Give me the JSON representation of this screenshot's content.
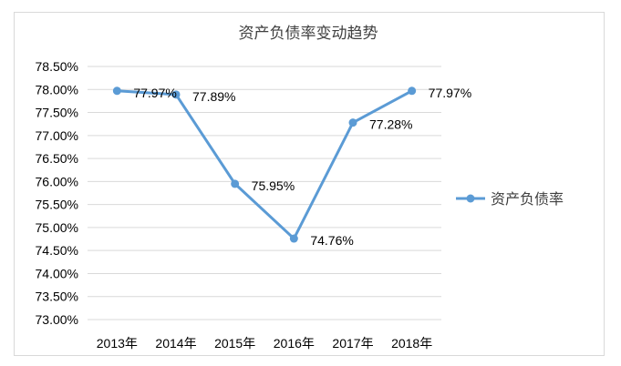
{
  "chart_data": {
    "type": "line",
    "title": "资产负债率变动趋势",
    "categories": [
      "2013年",
      "2014年",
      "2015年",
      "2016年",
      "2017年",
      "2018年"
    ],
    "series": [
      {
        "name": "资产负债率",
        "values": [
          77.97,
          77.89,
          75.95,
          74.76,
          77.28,
          77.97
        ],
        "labels": [
          "77.97%",
          "77.89%",
          "75.95%",
          "74.76%",
          "77.28%",
          "77.97%"
        ]
      }
    ],
    "yticks": [
      "73.00%",
      "73.50%",
      "74.00%",
      "74.50%",
      "75.00%",
      "75.50%",
      "76.00%",
      "76.50%",
      "77.00%",
      "77.50%",
      "78.00%",
      "78.50%"
    ],
    "ylim": [
      73.0,
      78.5
    ],
    "ystep": 0.5,
    "grid": true,
    "legend_position": "right",
    "line_color": "#5b9bd5",
    "grid_color": "#d9d9d9"
  }
}
